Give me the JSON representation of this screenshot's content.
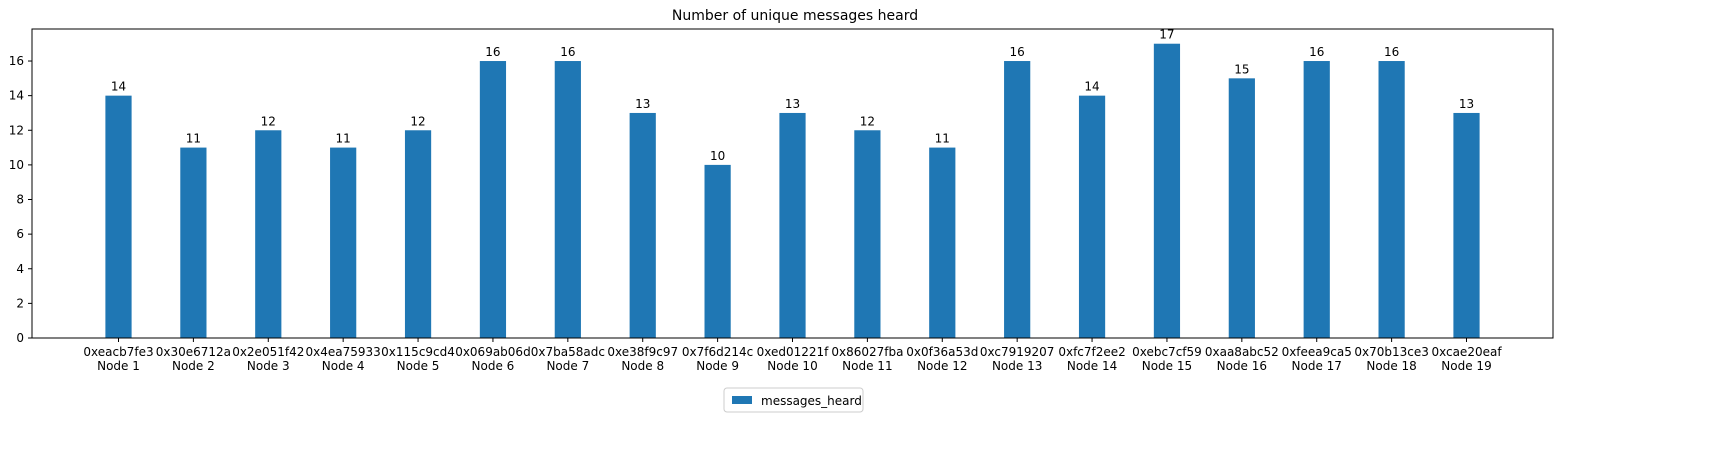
{
  "chart_data": {
    "type": "bar",
    "title": "Number of unique messages heard",
    "xlabel": "",
    "ylabel": "",
    "categories": [
      [
        "0xeacb7fe3",
        "Node 1"
      ],
      [
        "0x30e6712a",
        "Node 2"
      ],
      [
        "0x2e051f42",
        "Node 3"
      ],
      [
        "0x4ea75933",
        "Node 4"
      ],
      [
        "0x115c9cd4",
        "Node 5"
      ],
      [
        "0x069ab06d",
        "Node 6"
      ],
      [
        "0x7ba58adc",
        "Node 7"
      ],
      [
        "0xe38f9c97",
        "Node 8"
      ],
      [
        "0x7f6d214c",
        "Node 9"
      ],
      [
        "0xed01221f",
        "Node 10"
      ],
      [
        "0x86027fba",
        "Node 11"
      ],
      [
        "0x0f36a53d",
        "Node 12"
      ],
      [
        "0xc7919207",
        "Node 13"
      ],
      [
        "0xfc7f2ee2",
        "Node 14"
      ],
      [
        "0xebc7cf59",
        "Node 15"
      ],
      [
        "0xaa8abc52",
        "Node 16"
      ],
      [
        "0xfeea9ca5",
        "Node 17"
      ],
      [
        "0x70b13ce3",
        "Node 18"
      ],
      [
        "0xcae20eaf",
        "Node 19"
      ]
    ],
    "series": [
      {
        "name": "messages_heard",
        "color": "#1f77b4",
        "values": [
          14,
          11,
          12,
          11,
          12,
          16,
          16,
          13,
          10,
          13,
          12,
          11,
          16,
          14,
          17,
          15,
          16,
          16,
          13
        ]
      }
    ],
    "ylim": [
      0,
      17.85
    ],
    "yticks": [
      0,
      2,
      4,
      6,
      8,
      10,
      12,
      14,
      16
    ],
    "grid": false,
    "legend_position": "bottom-center"
  }
}
